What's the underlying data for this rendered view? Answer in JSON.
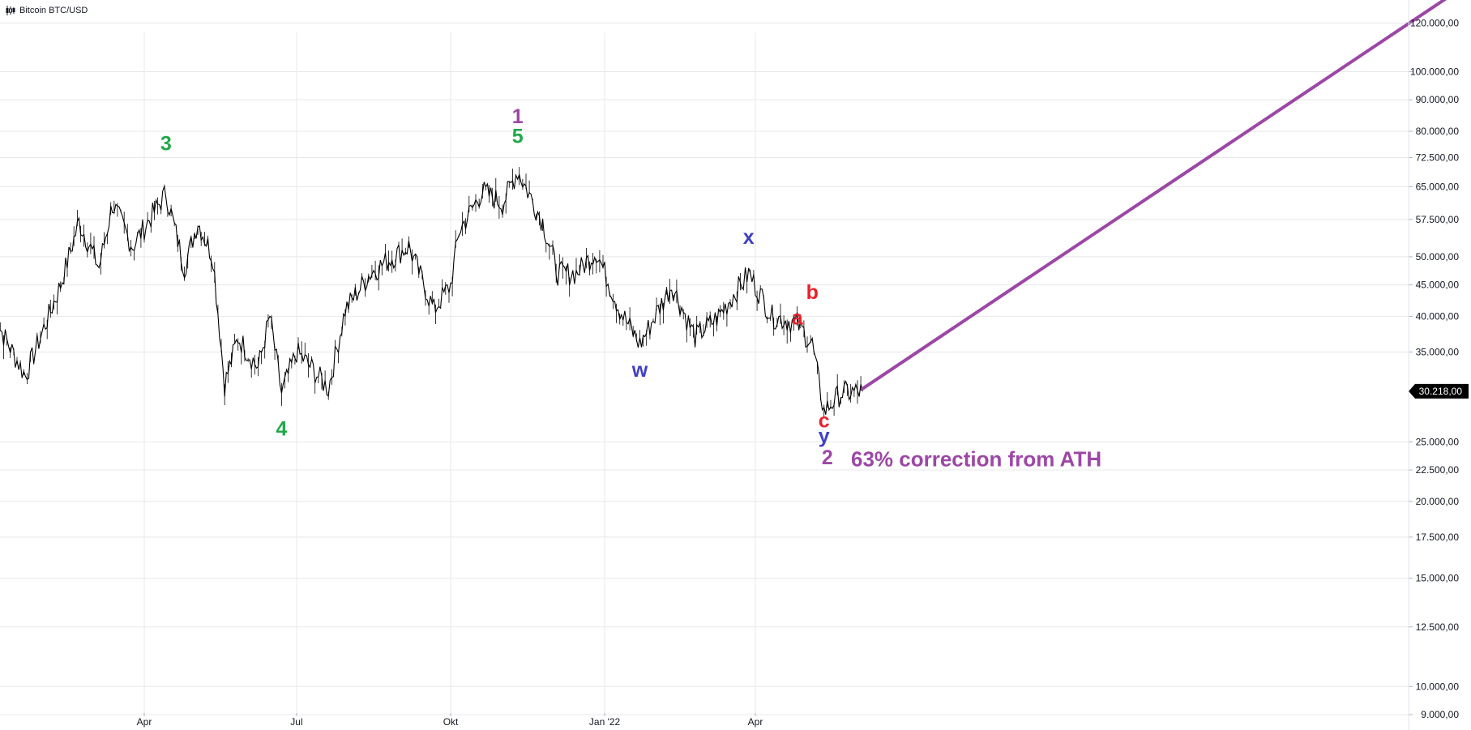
{
  "header": {
    "title": "Bitcoin BTC/USD",
    "icon": "candlestick-chart-icon"
  },
  "colors": {
    "green": "#22a84a",
    "purple": "#9c47a6",
    "blue": "#3f3fc6",
    "red": "#e8212b",
    "candle": "#000000",
    "grid": "#e8e8ec",
    "axis_text": "#131722",
    "price_tag_bg": "#000000"
  },
  "chart_data": {
    "type": "line",
    "title": "Bitcoin BTC/USD",
    "scale": "log",
    "grid": true,
    "ylim": [
      8600,
      130000
    ],
    "x_tick_labels": [
      "Apr",
      "Jul",
      "Okt",
      "Jan '22",
      "Apr"
    ],
    "y_tick_values": [
      120000,
      100000,
      90000,
      80000,
      72500,
      65000,
      57500,
      50000,
      45000,
      40000,
      35000,
      30218,
      25000,
      22500,
      20000,
      17500,
      15000,
      12500,
      10000,
      9000
    ],
    "y_tick_labels": [
      "120.000,00",
      "100.000,00",
      "90.000,00",
      "80.000,00",
      "72.500,00",
      "65.000,00",
      "57.500,00",
      "50.000,00",
      "45.000,00",
      "40.000,00",
      "35.000,00",
      "30.218,00",
      "25.000,00",
      "22.500,00",
      "20.000,00",
      "17.500,00",
      "15.000,00",
      "12.500,00",
      "10.000,00",
      "9.000,00"
    ],
    "current_price": 30218,
    "current_price_label": "30.218,00",
    "series": [
      {
        "x": [
          "2021-01-01",
          "2021-01-20",
          "2021-02-10",
          "2021-02-21",
          "2021-03-05",
          "2021-03-13",
          "2021-03-25",
          "2021-04-14",
          "2021-04-25",
          "2021-05-03",
          "2021-05-12",
          "2021-05-19",
          "2021-05-27",
          "2021-06-08",
          "2021-06-15",
          "2021-06-22",
          "2021-07-01",
          "2021-07-10",
          "2021-07-20",
          "2021-07-30",
          "2021-08-14",
          "2021-08-23",
          "2021-09-06",
          "2021-09-21",
          "2021-10-01",
          "2021-10-06",
          "2021-10-20",
          "2021-11-01",
          "2021-11-10",
          "2021-11-25",
          "2021-12-04",
          "2021-12-15",
          "2021-12-27",
          "2022-01-10",
          "2022-01-22",
          "2022-02-10",
          "2022-02-24",
          "2022-03-10",
          "2022-03-28",
          "2022-04-11",
          "2022-04-26",
          "2022-05-05",
          "2022-05-12",
          "2022-05-22",
          "2022-06-04"
        ],
        "y": [
          40000,
          32000,
          45000,
          57000,
          48000,
          61000,
          52000,
          63500,
          48000,
          57000,
          50000,
          31000,
          37000,
          33000,
          40000,
          30000,
          35000,
          33000,
          30500,
          41000,
          47000,
          49000,
          52000,
          41000,
          45000,
          55000,
          64000,
          61000,
          69000,
          57000,
          47000,
          47000,
          51000,
          41000,
          36000,
          45000,
          37000,
          40000,
          47000,
          40000,
          39000,
          36000,
          28000,
          30000,
          30200
        ]
      }
    ]
  },
  "wave_labels": [
    {
      "text": "3",
      "x": "2021-04-14",
      "y": 74500,
      "color": "green"
    },
    {
      "text": "4",
      "x": "2021-06-22",
      "y": 25600,
      "color": "green"
    },
    {
      "text": "1",
      "x": "2021-11-10",
      "y": 82500,
      "color": "purple"
    },
    {
      "text": "5",
      "x": "2021-11-10",
      "y": 76500,
      "color": "green"
    },
    {
      "text": "w",
      "x": "2022-01-22",
      "y": 31900,
      "color": "blue"
    },
    {
      "text": "x",
      "x": "2022-03-28",
      "y": 52500,
      "color": "blue"
    },
    {
      "text": "a",
      "x": "2022-04-26",
      "y": 38800,
      "color": "red"
    },
    {
      "text": "b",
      "x": "2022-05-05",
      "y": 42700,
      "color": "red"
    },
    {
      "text": "c",
      "x": "2022-05-12",
      "y": 26400,
      "color": "red"
    },
    {
      "text": "y",
      "x": "2022-05-12",
      "y": 24900,
      "color": "blue"
    },
    {
      "text": "2",
      "x": "2022-05-14",
      "y": 23000,
      "color": "purple"
    }
  ],
  "annotation": {
    "text": "63% correction from ATH"
  },
  "projection": {
    "from": {
      "x": "2022-06-04",
      "y": 30500
    },
    "to_price": 140000,
    "color": "purple"
  }
}
